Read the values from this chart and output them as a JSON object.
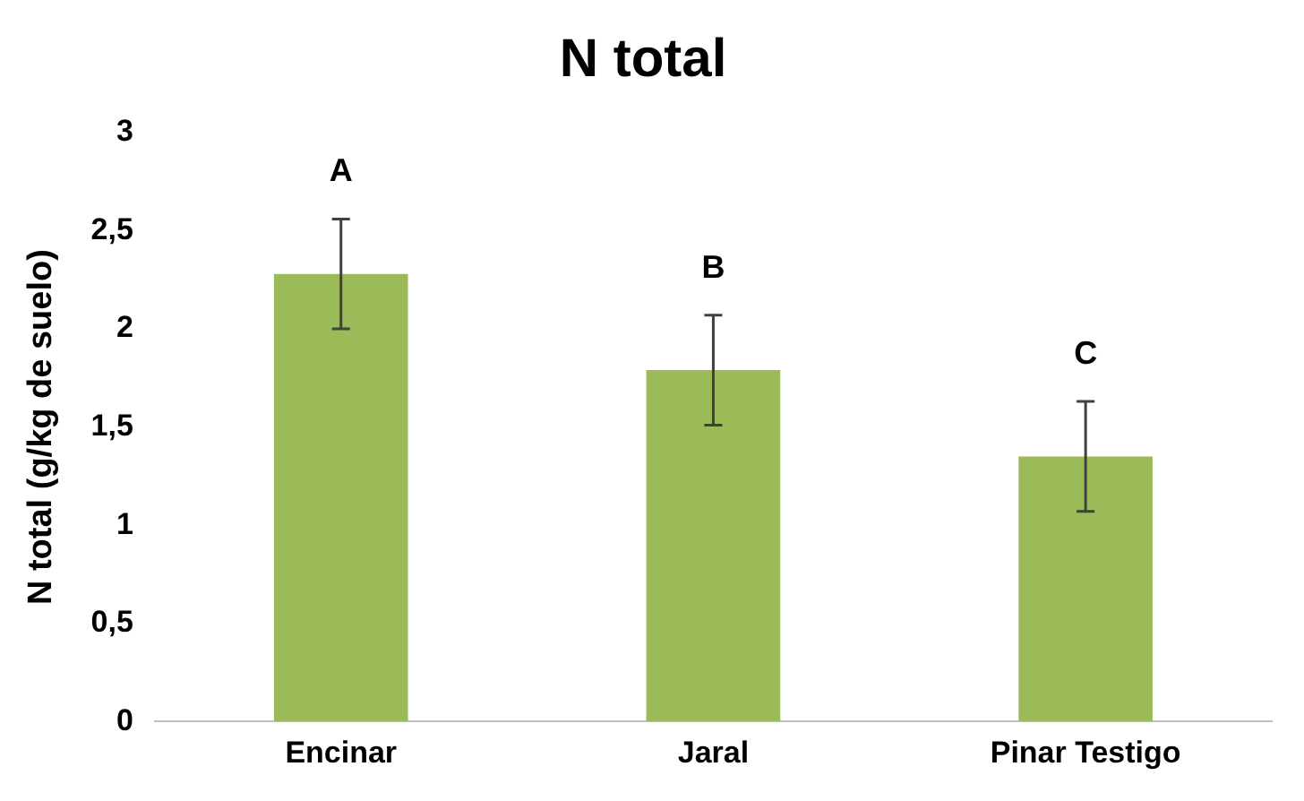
{
  "chart_data": {
    "type": "bar",
    "title": "N total",
    "ylabel": "N total (g/kg de suelo)",
    "categories": [
      "Encinar",
      "Jaral",
      "Pinar Testigo"
    ],
    "values": [
      2.28,
      1.79,
      1.35
    ],
    "errors": [
      0.28,
      0.28,
      0.28
    ],
    "color": "#9bbb59",
    "ylim": [
      0,
      3
    ],
    "yticks": [
      0,
      {
        "value": 0.5,
        "label": "0,5"
      },
      1,
      {
        "value": 1.5,
        "label": "1,5"
      },
      2,
      {
        "value": 2.5,
        "label": "2,5"
      },
      3
    ],
    "annotations": [
      "A",
      "B",
      "C"
    ]
  }
}
